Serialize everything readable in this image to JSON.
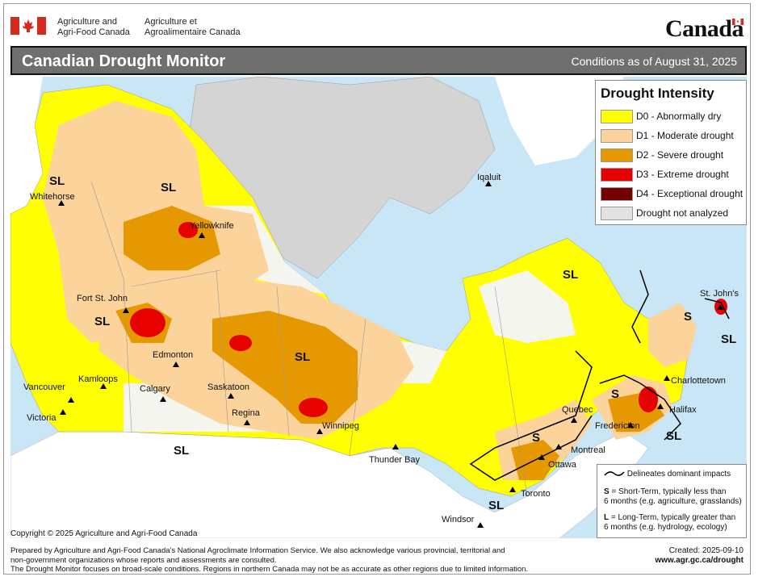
{
  "header": {
    "gov_en_line1": "Agriculture and",
    "gov_en_line2": "Agri-Food Canada",
    "gov_fr_line1": "Agriculture et",
    "gov_fr_line2": "Agroalimentaire Canada",
    "wordmark": "Canada"
  },
  "title": "Canadian Drought Monitor",
  "subtitle": "Conditions as of August 31, 2025",
  "legend": {
    "title": "Drought Intensity",
    "items": [
      {
        "label": "D0 - Abnormally dry",
        "color": "#ffff00"
      },
      {
        "label": "D1 - Moderate drought",
        "color": "#fcd39b"
      },
      {
        "label": "D2 - Severe drought",
        "color": "#e69800"
      },
      {
        "label": "D3 - Extreme drought",
        "color": "#e60000"
      },
      {
        "label": "D4 - Exceptional drought",
        "color": "#730000"
      },
      {
        "label": "Drought not analyzed",
        "color": "#e1e1e1"
      }
    ]
  },
  "impacts": {
    "line_label": "Delineates dominant impacts",
    "s_key": "S",
    "s_text_1": "= Short-Term, typically less than",
    "s_text_2": "6 months (e.g. agriculture, grasslands)",
    "l_key": "L",
    "l_text_1": "= Long-Term, typically greater  than",
    "l_text_2": "6 months (e.g. hydrology, ecology)"
  },
  "cities": {
    "whitehorse": "Whitehorse",
    "yellowknife": "Yellowknife",
    "iqaluit": "Iqaluit",
    "fort_st_john": "Fort St. John",
    "edmonton": "Edmonton",
    "kamloops": "Kamloops",
    "vancouver": "Vancouver",
    "victoria": "Victoria",
    "calgary": "Calgary",
    "saskatoon": "Saskatoon",
    "regina": "Regina",
    "winnipeg": "Winnipeg",
    "thunder_bay": "Thunder Bay",
    "quebec": "Quebec",
    "montreal": "Montreal",
    "ottawa": "Ottawa",
    "toronto": "Toronto",
    "windsor": "Windsor",
    "fredericton": "Fredericton",
    "halifax": "Halifax",
    "charlottetown": "Charlottetown",
    "st_johns": "St. John's"
  },
  "impact_labels": {
    "yukon": "SL",
    "nwt": "SL",
    "bc": "SL",
    "prairies": "SL",
    "south_prairie": "SL",
    "labrador": "SL",
    "quebec": "S",
    "ontario": "SL",
    "maritimes_s": "S",
    "maritimes_sl": "SL",
    "nfld_s": "S",
    "nfld_sl": "SL"
  },
  "colors": {
    "water": "#c9e6f6",
    "land_us": "#ffffff",
    "not_analyzed": "#d4d4d4",
    "d0": "#ffff00",
    "d1": "#fcd39b",
    "d2": "#e69800",
    "d3": "#e60000",
    "d4": "#730000",
    "titlebar": "#6f6f6f"
  },
  "copyright": "Copyright © 2025 Agriculture and Agri-Food Canada",
  "footer": {
    "line1": "Prepared by Agriculture and Agri-Food Canada's National Agroclimate Information Service.  We also acknowledge various provincial, territorial and",
    "line2": "non-government organizations whose reports and assessments are consulted.",
    "line3": "The Drought Monitor focuses on broad-scale conditions.  Regions in northern Canada may not be as accurate as other regions due to limited information."
  },
  "created": {
    "text": "Created: 2025-09-10",
    "url": "www.agr.gc.ca/drought"
  }
}
